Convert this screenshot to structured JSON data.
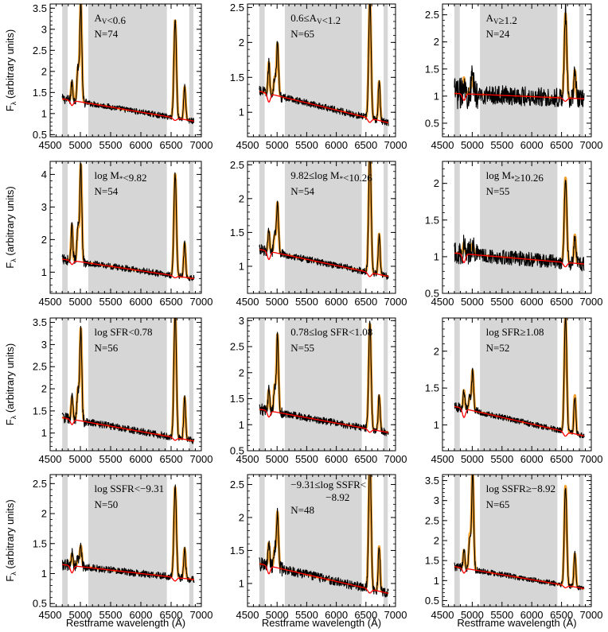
{
  "figure": {
    "ylabel": "F",
    "ylabel_sub": "λ",
    "ylabel_rest": " (arbitrary units)",
    "xlabel": "Restframe wavelength (Å)"
  },
  "colors": {
    "observed": "#000000",
    "fit": "#f0a030",
    "continuum": "#ff0000",
    "mask": "#d6d6d6"
  },
  "chart_data": [
    {
      "type": "line",
      "row": 0,
      "col": 0,
      "xlim": [
        4500,
        7000
      ],
      "ylim": [
        0.45,
        3.6
      ],
      "xticks": [
        4500,
        5000,
        5500,
        6000,
        6500,
        7000
      ],
      "yticks": [
        0.5,
        1.0,
        1.5,
        2.0,
        2.5,
        3.0,
        3.5
      ],
      "annotation": [
        "A_V<0.6",
        "N=74"
      ],
      "masked_ranges": [
        [
          4700,
          4790
        ],
        [
          5130,
          6430
        ],
        [
          6800,
          6870
        ]
      ],
      "profile": {
        "c0": 1.35,
        "c1": 0.82,
        "hb": 0.45,
        "o3": 2.35,
        "ha": 2.0,
        "noise": 0.07
      }
    },
    {
      "type": "line",
      "row": 0,
      "col": 1,
      "xlim": [
        4500,
        7000
      ],
      "ylim": [
        0.65,
        2.55
      ],
      "xticks": [
        4500,
        5000,
        5500,
        6000,
        6500,
        7000
      ],
      "yticks": [
        1.0,
        1.5,
        2.0,
        2.5
      ],
      "annotation": [
        "0.6≤A_V<1.2",
        "N=65"
      ],
      "masked_ranges": [
        [
          4700,
          4790
        ],
        [
          5130,
          6430
        ],
        [
          6800,
          6870
        ]
      ],
      "profile": {
        "c0": 1.3,
        "c1": 0.85,
        "hb": 0.45,
        "o3": 0.75,
        "ha": 1.45,
        "noise": 0.05
      }
    },
    {
      "type": "line",
      "row": 0,
      "col": 2,
      "xlim": [
        4500,
        7000
      ],
      "ylim": [
        0.25,
        2.7
      ],
      "xticks": [
        4500,
        5000,
        5500,
        6000,
        6500,
        7000
      ],
      "yticks": [
        0.5,
        1.0,
        1.5,
        2.0,
        2.5
      ],
      "annotation": [
        "A_V≥1.2",
        "N=24"
      ],
      "masked_ranges": [
        [
          4700,
          4790
        ],
        [
          5130,
          6430
        ],
        [
          6800,
          6870
        ]
      ],
      "profile": {
        "c0": 1.05,
        "c1": 0.95,
        "hb": 0.3,
        "o3": 0.3,
        "ha": 1.35,
        "noise": 0.18
      }
    },
    {
      "type": "line",
      "row": 1,
      "col": 0,
      "xlim": [
        4500,
        7000
      ],
      "ylim": [
        0.35,
        4.4
      ],
      "xticks": [
        4500,
        5000,
        5500,
        6000,
        6500,
        7000
      ],
      "yticks": [
        1,
        2,
        3,
        4
      ],
      "annotation": [
        "log M_*<9.82",
        "N=54"
      ],
      "masked_ranges": [
        [
          4700,
          4790
        ],
        [
          5130,
          6430
        ],
        [
          6800,
          6870
        ]
      ],
      "profile": {
        "c0": 1.4,
        "c1": 0.8,
        "hb": 1.1,
        "o3": 3.0,
        "ha": 2.7,
        "noise": 0.1
      }
    },
    {
      "type": "line",
      "row": 1,
      "col": 1,
      "xlim": [
        4500,
        7000
      ],
      "ylim": [
        0.6,
        2.55
      ],
      "xticks": [
        4500,
        5000,
        5500,
        6000,
        6500,
        7000
      ],
      "yticks": [
        1.0,
        1.5,
        2.0,
        2.5
      ],
      "annotation": [
        "9.82≤log M_*<10.26",
        "N=54"
      ],
      "masked_ranges": [
        [
          4700,
          4790
        ],
        [
          5130,
          6430
        ],
        [
          6800,
          6870
        ]
      ],
      "profile": {
        "c0": 1.25,
        "c1": 0.85,
        "hb": 0.3,
        "o3": 0.75,
        "ha": 1.55,
        "noise": 0.05
      }
    },
    {
      "type": "line",
      "row": 1,
      "col": 2,
      "xlim": [
        4500,
        7000
      ],
      "ylim": [
        0.5,
        2.3
      ],
      "xticks": [
        4500,
        5000,
        5500,
        6000,
        6500,
        7000
      ],
      "yticks": [
        0.5,
        1.0,
        1.5,
        2.0
      ],
      "annotation": [
        "log M_*≥10.26",
        "N=55"
      ],
      "masked_ranges": [
        [
          4700,
          4790
        ],
        [
          5130,
          6430
        ],
        [
          6800,
          6870
        ]
      ],
      "profile": {
        "c0": 1.05,
        "c1": 0.9,
        "hb": 0.15,
        "o3": 0.15,
        "ha": 1.0,
        "noise": 0.1
      }
    },
    {
      "type": "line",
      "row": 2,
      "col": 0,
      "xlim": [
        4500,
        7000
      ],
      "ylim": [
        0.6,
        3.6
      ],
      "xticks": [
        4500,
        5000,
        5500,
        6000,
        6500,
        7000
      ],
      "yticks": [
        1.0,
        1.5,
        2.0,
        2.5,
        3.0,
        3.5
      ],
      "annotation": [
        "log SFR<0.78",
        "N=56"
      ],
      "masked_ranges": [
        [
          4700,
          4790
        ],
        [
          5130,
          6430
        ],
        [
          6800,
          6870
        ]
      ],
      "profile": {
        "c0": 1.35,
        "c1": 0.82,
        "hb": 0.5,
        "o3": 2.1,
        "ha": 2.45,
        "noise": 0.08
      }
    },
    {
      "type": "line",
      "row": 2,
      "col": 1,
      "xlim": [
        4500,
        7000
      ],
      "ylim": [
        0.5,
        3.05
      ],
      "xticks": [
        4500,
        5000,
        5500,
        6000,
        6500,
        7000
      ],
      "yticks": [
        0.5,
        1.0,
        1.5,
        2.0,
        2.5,
        3.0
      ],
      "annotation": [
        "0.78≤log SFR<1.08",
        "N=55"
      ],
      "masked_ranges": [
        [
          4700,
          4790
        ],
        [
          5130,
          6430
        ],
        [
          6800,
          6870
        ]
      ],
      "profile": {
        "c0": 1.3,
        "c1": 0.85,
        "hb": 0.4,
        "o3": 1.5,
        "ha": 1.75,
        "noise": 0.07
      }
    },
    {
      "type": "line",
      "row": 2,
      "col": 2,
      "xlim": [
        4500,
        7000
      ],
      "ylim": [
        0.65,
        2.45
      ],
      "xticks": [
        4500,
        5000,
        5500,
        6000,
        6500,
        7000
      ],
      "yticks": [
        1.0,
        1.5,
        2.0
      ],
      "annotation": [
        "log SFR≥1.08",
        "N=52"
      ],
      "masked_ranges": [
        [
          4700,
          4790
        ],
        [
          5130,
          6430
        ],
        [
          6800,
          6870
        ]
      ],
      "profile": {
        "c0": 1.25,
        "c1": 0.85,
        "hb": 0.25,
        "o3": 0.55,
        "ha": 1.35,
        "noise": 0.04
      }
    },
    {
      "type": "line",
      "row": 3,
      "col": 0,
      "xlim": [
        4500,
        7000
      ],
      "ylim": [
        0.45,
        2.65
      ],
      "xticks": [
        4500,
        5000,
        5500,
        6000,
        6500,
        7000
      ],
      "yticks": [
        0.5,
        1.0,
        1.5,
        2.0,
        2.5
      ],
      "annotation": [
        "log SSFR<−9.31",
        "N=50"
      ],
      "masked_ranges": [
        [
          4700,
          4790
        ],
        [
          5130,
          6430
        ],
        [
          6800,
          6870
        ]
      ],
      "profile": {
        "c0": 1.15,
        "c1": 0.9,
        "hb": 0.2,
        "o3": 0.35,
        "ha": 1.3,
        "noise": 0.06
      }
    },
    {
      "type": "line",
      "row": 3,
      "col": 1,
      "xlim": [
        4500,
        7000
      ],
      "ylim": [
        0.65,
        2.65
      ],
      "xticks": [
        4500,
        5000,
        5500,
        6000,
        6500,
        7000
      ],
      "yticks": [
        1.0,
        1.5,
        2.0,
        2.5
      ],
      "annotation": [
        "−9.31≤log SSFR<",
        "−8.92",
        "N=48"
      ],
      "masked_ranges": [
        [
          4700,
          4790
        ],
        [
          5130,
          6430
        ],
        [
          6800,
          6870
        ]
      ],
      "profile": {
        "c0": 1.3,
        "c1": 0.85,
        "hb": 0.35,
        "o3": 0.85,
        "ha": 1.75,
        "noise": 0.07
      }
    },
    {
      "type": "line",
      "row": 3,
      "col": 2,
      "xlim": [
        4500,
        7000
      ],
      "ylim": [
        0.35,
        3.65
      ],
      "xticks": [
        4500,
        5000,
        5500,
        6000,
        6500,
        7000
      ],
      "yticks": [
        0.5,
        1.0,
        1.5,
        2.0,
        2.5,
        3.0,
        3.5
      ],
      "annotation": [
        "log SSFR≥−8.92",
        "N=65"
      ],
      "masked_ranges": [
        [
          4700,
          4790
        ],
        [
          5130,
          6430
        ],
        [
          6800,
          6870
        ]
      ],
      "profile": {
        "c0": 1.35,
        "c1": 0.8,
        "hb": 0.45,
        "o3": 2.55,
        "ha": 2.15,
        "noise": 0.07
      }
    }
  ]
}
